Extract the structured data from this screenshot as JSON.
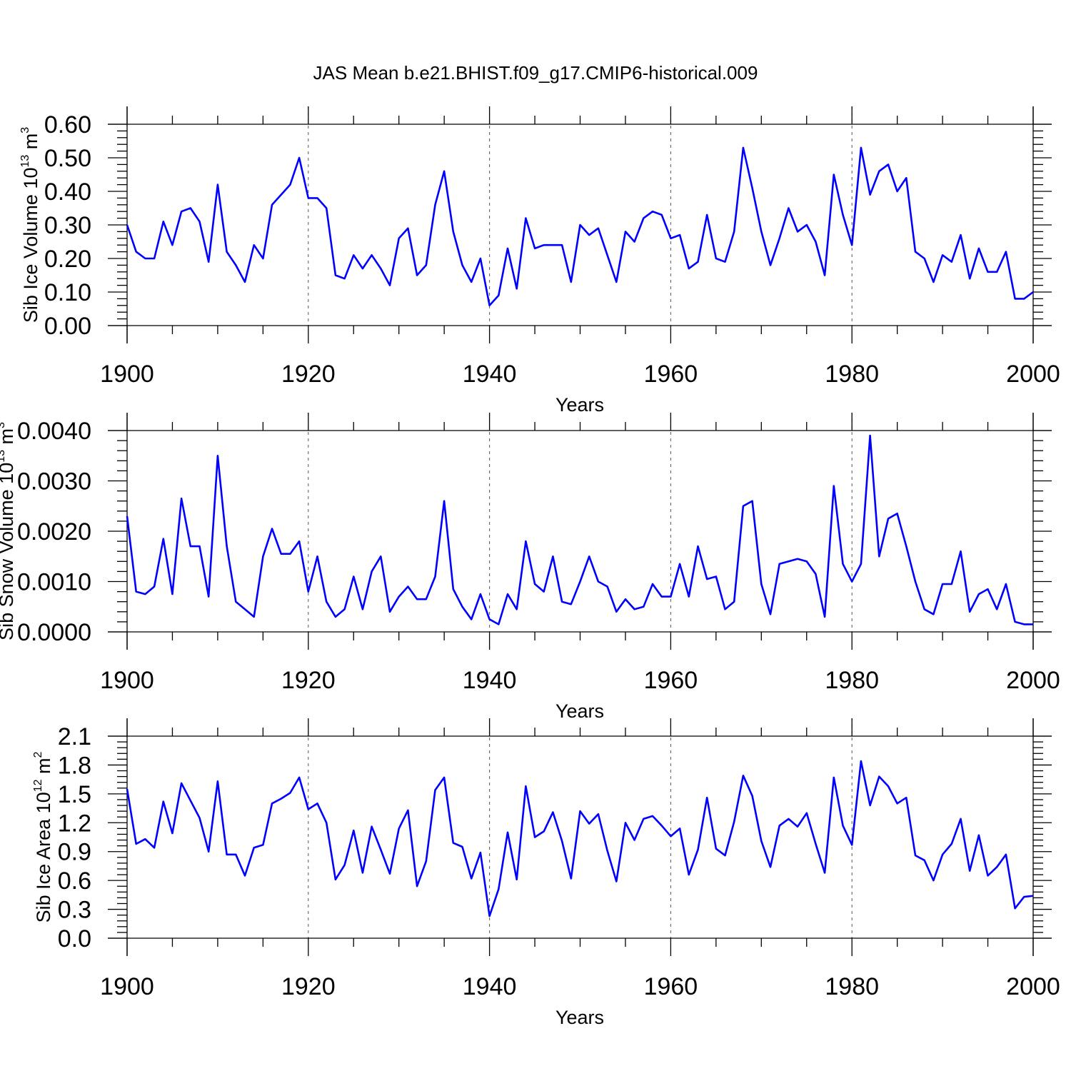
{
  "title": "JAS Mean b.e21.BHIST.f09_g17.CMIP6-historical.009",
  "line_color": "#0000ff",
  "chart_data": [
    {
      "type": "line",
      "ylabel": "Sib Ice Volume 10",
      "ylabel_sup": "13",
      "ylabel_unit": " m",
      "ylabel_unit_sup": "3",
      "xlabel": "Years",
      "xlim": [
        1900,
        2000
      ],
      "ylim": [
        0.0,
        0.6
      ],
      "yticks": [
        "0.00",
        "0.10",
        "0.20",
        "0.30",
        "0.40",
        "0.50",
        "0.60"
      ],
      "xticks": [
        "1900",
        "1920",
        "1940",
        "1960",
        "1980",
        "2000"
      ],
      "x_start": 1900,
      "values": [
        0.3,
        0.22,
        0.2,
        0.2,
        0.31,
        0.24,
        0.34,
        0.35,
        0.31,
        0.19,
        0.42,
        0.22,
        0.18,
        0.13,
        0.24,
        0.2,
        0.36,
        0.39,
        0.42,
        0.5,
        0.38,
        0.38,
        0.35,
        0.15,
        0.14,
        0.21,
        0.17,
        0.21,
        0.17,
        0.12,
        0.26,
        0.29,
        0.15,
        0.18,
        0.36,
        0.46,
        0.28,
        0.18,
        0.13,
        0.2,
        0.06,
        0.09,
        0.23,
        0.11,
        0.32,
        0.23,
        0.24,
        0.24,
        0.24,
        0.13,
        0.3,
        0.27,
        0.29,
        0.21,
        0.13,
        0.28,
        0.25,
        0.32,
        0.34,
        0.33,
        0.26,
        0.27,
        0.17,
        0.19,
        0.33,
        0.2,
        0.19,
        0.28,
        0.53,
        0.41,
        0.28,
        0.18,
        0.26,
        0.35,
        0.28,
        0.3,
        0.25,
        0.15,
        0.45,
        0.33,
        0.24,
        0.53,
        0.39,
        0.46,
        0.48,
        0.4,
        0.44,
        0.22,
        0.2,
        0.13,
        0.21,
        0.19,
        0.27,
        0.14,
        0.23,
        0.16,
        0.16,
        0.22,
        0.08,
        0.08,
        0.1
      ]
    },
    {
      "type": "line",
      "ylabel": "Sib Snow Volume 10",
      "ylabel_sup": "13",
      "ylabel_unit": " m",
      "ylabel_unit_sup": "3",
      "xlabel": "Years",
      "xlim": [
        1900,
        2000
      ],
      "ylim": [
        0.0,
        0.004
      ],
      "yticks": [
        "0.0000",
        "0.0010",
        "0.0020",
        "0.0030",
        "0.0040"
      ],
      "xticks": [
        "1900",
        "1920",
        "1940",
        "1960",
        "1980",
        "2000"
      ],
      "x_start": 1900,
      "values": [
        0.0023,
        0.0008,
        0.00075,
        0.0009,
        0.00185,
        0.00075,
        0.00265,
        0.0017,
        0.0017,
        0.0007,
        0.0035,
        0.0017,
        0.0006,
        0.00045,
        0.0003,
        0.0015,
        0.00205,
        0.00155,
        0.00155,
        0.0018,
        0.0008,
        0.0015,
        0.0006,
        0.0003,
        0.00045,
        0.0011,
        0.00045,
        0.0012,
        0.0015,
        0.0004,
        0.0007,
        0.0009,
        0.00065,
        0.00065,
        0.0011,
        0.0026,
        0.00085,
        0.0005,
        0.00025,
        0.00075,
        0.00025,
        0.00015,
        0.00075,
        0.00045,
        0.0018,
        0.00095,
        0.0008,
        0.0015,
        0.0006,
        0.00055,
        0.001,
        0.0015,
        0.001,
        0.0009,
        0.0004,
        0.00065,
        0.00045,
        0.0005,
        0.00095,
        0.0007,
        0.0007,
        0.00135,
        0.0007,
        0.0017,
        0.00105,
        0.0011,
        0.00045,
        0.0006,
        0.0025,
        0.0026,
        0.00095,
        0.00035,
        0.00135,
        0.0014,
        0.00145,
        0.0014,
        0.00115,
        0.0003,
        0.0029,
        0.00135,
        0.001,
        0.00135,
        0.0039,
        0.0015,
        0.00225,
        0.00235,
        0.0017,
        0.001,
        0.00045,
        0.00035,
        0.00095,
        0.00095,
        0.0016,
        0.0004,
        0.00075,
        0.00085,
        0.00045,
        0.00095,
        0.0002,
        0.00015,
        0.00015
      ]
    },
    {
      "type": "line",
      "ylabel": "Sib Ice Area 10",
      "ylabel_sup": "12",
      "ylabel_unit": " m",
      "ylabel_unit_sup": "2",
      "xlabel": "Years",
      "xlim": [
        1900,
        2000
      ],
      "ylim": [
        0.0,
        2.1
      ],
      "yticks": [
        "0.0",
        "0.3",
        "0.6",
        "0.9",
        "1.2",
        "1.5",
        "1.8",
        "2.1"
      ],
      "xticks": [
        "1900",
        "1920",
        "1940",
        "1960",
        "1980",
        "2000"
      ],
      "x_start": 1900,
      "values": [
        1.55,
        0.98,
        1.03,
        0.94,
        1.42,
        1.09,
        1.61,
        1.43,
        1.25,
        0.9,
        1.63,
        0.87,
        0.87,
        0.65,
        0.94,
        0.97,
        1.4,
        1.45,
        1.51,
        1.67,
        1.34,
        1.4,
        1.2,
        0.61,
        0.76,
        1.12,
        0.68,
        1.16,
        0.92,
        0.67,
        1.14,
        1.33,
        0.54,
        0.8,
        1.54,
        1.67,
        0.99,
        0.95,
        0.62,
        0.89,
        0.23,
        0.51,
        1.1,
        0.61,
        1.58,
        1.05,
        1.11,
        1.31,
        1.01,
        0.62,
        1.32,
        1.19,
        1.29,
        0.91,
        0.59,
        1.2,
        1.02,
        1.24,
        1.27,
        1.17,
        1.06,
        1.14,
        0.66,
        0.92,
        1.46,
        0.93,
        0.86,
        1.21,
        1.69,
        1.48,
        1.01,
        0.74,
        1.17,
        1.24,
        1.16,
        1.3,
        0.98,
        0.68,
        1.67,
        1.17,
        0.97,
        1.84,
        1.38,
        1.68,
        1.58,
        1.4,
        1.46,
        0.86,
        0.81,
        0.6,
        0.87,
        0.98,
        1.24,
        0.7,
        1.07,
        0.65,
        0.74,
        0.87,
        0.31,
        0.43,
        0.44
      ]
    }
  ]
}
